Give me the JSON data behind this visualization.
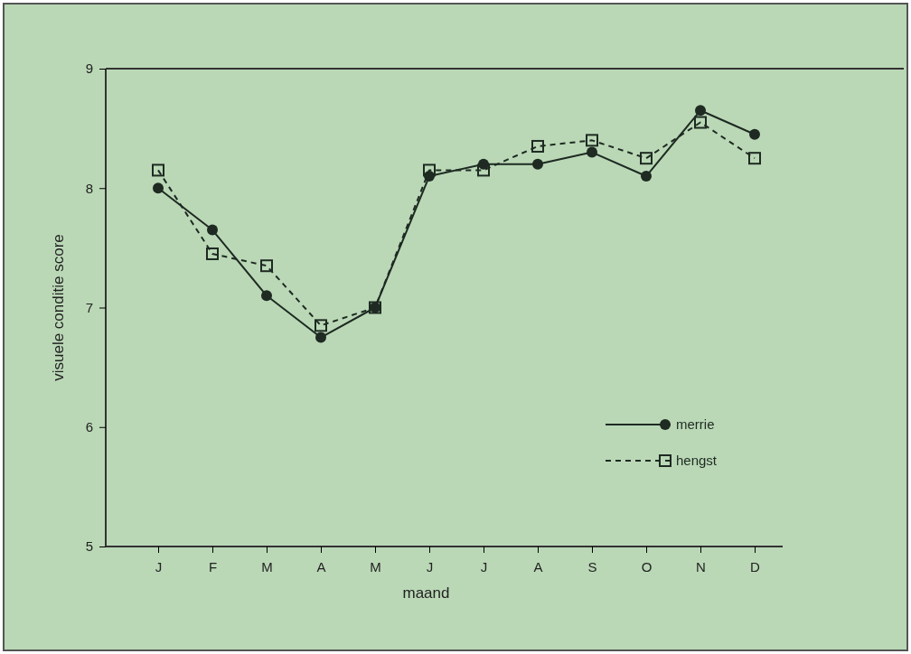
{
  "chart_data": {
    "type": "line",
    "xlabel": "maand",
    "ylabel": "visuele conditie score",
    "categories": [
      "J",
      "F",
      "M",
      "A",
      "M",
      "J",
      "J",
      "A",
      "S",
      "O",
      "N",
      "D"
    ],
    "ylim": [
      5,
      9
    ],
    "yticks": [
      5,
      6,
      7,
      8,
      9
    ],
    "grid": false,
    "legend": "bottom right",
    "series": [
      {
        "name": "merrie",
        "color": "#1e2a22",
        "marker": "circle",
        "line_style": "solid",
        "values": [
          8.0,
          7.65,
          7.1,
          6.75,
          7.0,
          8.1,
          8.2,
          8.2,
          8.3,
          8.1,
          8.65,
          8.45
        ]
      },
      {
        "name": "hengst",
        "color": "#1e2a22",
        "marker": "square",
        "line_style": "dashed",
        "values": [
          8.15,
          7.45,
          7.35,
          6.85,
          7.0,
          8.15,
          8.15,
          8.35,
          8.4,
          8.25,
          8.55,
          8.25
        ]
      }
    ]
  }
}
